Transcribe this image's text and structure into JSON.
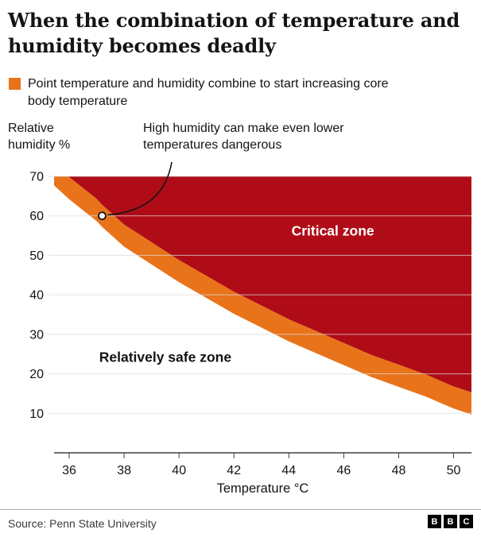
{
  "title": "When the combination of temperature and humidity becomes deadly",
  "legend": {
    "label": "Point temperature and humidity combine to start increasing core body temperature",
    "swatch_color": "#e8731a"
  },
  "y_axis_label": "Relative humidity %",
  "annotation": {
    "text": "High humidity can make even lower temperatures dangerous",
    "point_x": 37.2,
    "point_y": 60
  },
  "footer": {
    "source": "Source: Penn State University",
    "logo_letters": [
      "B",
      "B",
      "C"
    ]
  },
  "chart_data": {
    "type": "area",
    "x_label": "Temperature °C",
    "x_ticks": [
      36,
      38,
      40,
      42,
      44,
      46,
      48,
      50
    ],
    "y_ticks": [
      10,
      20,
      30,
      40,
      50,
      60,
      70
    ],
    "x_range": [
      35.45,
      50.65
    ],
    "y_range": [
      0,
      70
    ],
    "colors": {
      "critical_zone": "#b00c17",
      "threshold_band": "#e8731a",
      "gridline": "#dcdcdc",
      "axis": "#404040"
    },
    "zones": [
      {
        "name": "Critical zone",
        "label_x": 45.6,
        "label_y": 55,
        "label_color": "#ffffff"
      },
      {
        "name": "Relatively safe zone",
        "label_x": 39.5,
        "label_y": 23,
        "label_color": "#141414"
      }
    ],
    "boundary": {
      "x": [
        35.45,
        36,
        37,
        37.2,
        38,
        39,
        40,
        41,
        42,
        43,
        44,
        45,
        46,
        47,
        48,
        49,
        50,
        50.65
      ],
      "humidity": [
        70.5,
        67,
        61.5,
        60,
        55,
        50.5,
        46,
        42,
        38,
        34.5,
        31,
        28,
        25,
        22,
        19.5,
        17,
        14,
        12.5
      ],
      "band_half_width": 2.8
    }
  }
}
